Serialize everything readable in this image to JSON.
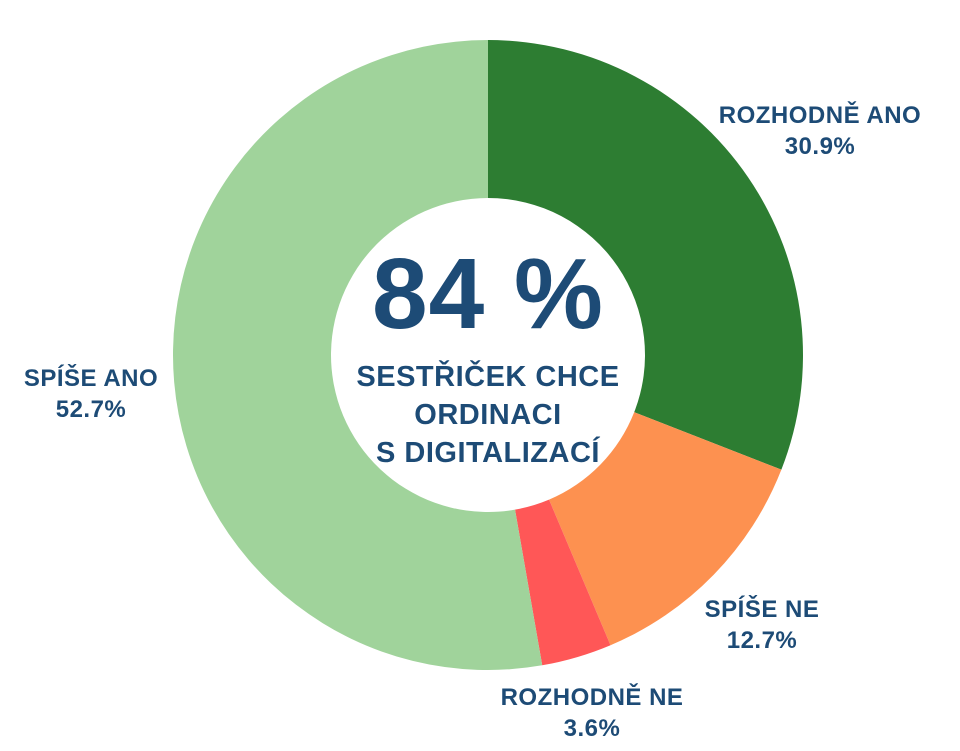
{
  "chart_data": {
    "type": "pie",
    "subtype": "donut",
    "direction": "clockwise",
    "start_angle_deg": 0,
    "legend_position": "around-chart",
    "segments": [
      {
        "label": "ROZHODNĚ ANO",
        "pct_label": "30.9%",
        "value": 30.9,
        "color": "#2d7d32"
      },
      {
        "label": "SPÍŠE NE",
        "pct_label": "12.7%",
        "value": 12.7,
        "color": "#fd9150"
      },
      {
        "label": "ROZHODNĚ NE",
        "pct_label": "3.6%",
        "value": 3.6,
        "color": "#ff5757"
      },
      {
        "label": "SPÍŠE ANO",
        "pct_label": "52.7%",
        "value": 52.7,
        "color": "#a0d39b"
      }
    ],
    "center_text": {
      "headline": "84 %",
      "lines": [
        "SESTŘIČEK CHCE",
        "ORDINACI",
        "S DIGITALIZACÍ"
      ]
    },
    "colors": {
      "text_navy": "#1d4b76",
      "background": "#ffffff"
    }
  }
}
